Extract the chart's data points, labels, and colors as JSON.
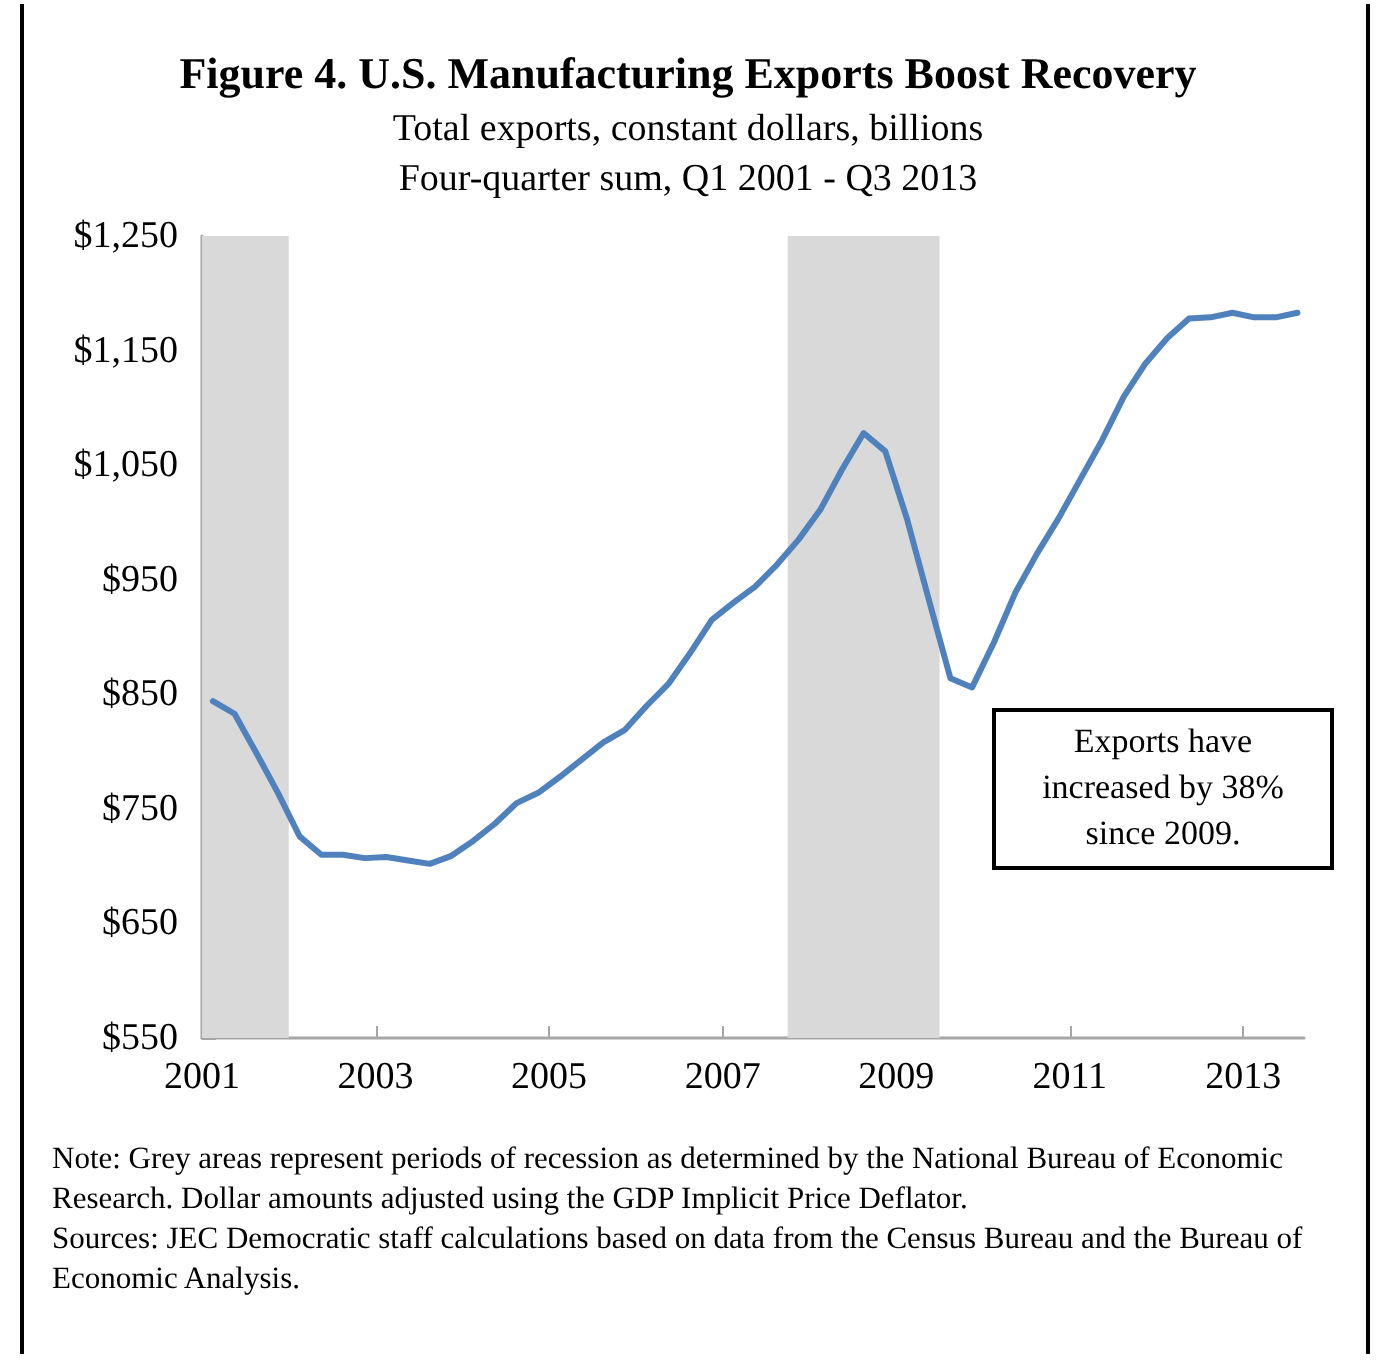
{
  "chart_data": {
    "type": "line",
    "title": "Figure 4. U.S. Manufacturing Exports Boost Recovery",
    "subtitle": "Total exports, constant dollars, billions\nFour-quarter sum, Q1 2001 - Q3 2013",
    "x": [
      2001.125,
      2001.375,
      2001.625,
      2001.875,
      2002.125,
      2002.375,
      2002.625,
      2002.875,
      2003.125,
      2003.375,
      2003.625,
      2003.875,
      2004.125,
      2004.375,
      2004.625,
      2004.875,
      2005.125,
      2005.375,
      2005.625,
      2005.875,
      2006.125,
      2006.375,
      2006.625,
      2006.875,
      2007.125,
      2007.375,
      2007.625,
      2007.875,
      2008.125,
      2008.375,
      2008.625,
      2008.875,
      2009.125,
      2009.375,
      2009.625,
      2009.875,
      2010.125,
      2010.375,
      2010.625,
      2010.875,
      2011.125,
      2011.375,
      2011.625,
      2011.875,
      2012.125,
      2012.375,
      2012.625,
      2012.875,
      2013.125,
      2013.375,
      2013.625
    ],
    "series": [
      {
        "color": "#4f81bd",
        "values": [
          844,
          833,
          799,
          764,
          726,
          710,
          710,
          707,
          708,
          705,
          702,
          709,
          722,
          737,
          755,
          764,
          778,
          793,
          808,
          819,
          840,
          859,
          886,
          915,
          930,
          944,
          963,
          985,
          1011,
          1046,
          1078,
          1062,
          1003,
          933,
          864,
          856,
          895,
          939,
          973,
          1004,
          1038,
          1072,
          1110,
          1139,
          1161,
          1178,
          1179,
          1183,
          1179,
          1179,
          1183
        ]
      }
    ],
    "xlim": [
      2001,
      2013.7
    ],
    "xticks": [
      2001,
      2003,
      2005,
      2007,
      2009,
      2011,
      2013
    ],
    "ylim": [
      550,
      1250
    ],
    "yticks": [
      {
        "value": 550,
        "label": "$550"
      },
      {
        "value": 650,
        "label": "$650"
      },
      {
        "value": 750,
        "label": "$750"
      },
      {
        "value": 850,
        "label": "$850"
      },
      {
        "value": 950,
        "label": "$950"
      },
      {
        "value": 1050,
        "label": "$1,050"
      },
      {
        "value": 1150,
        "label": "$1,150"
      },
      {
        "value": 1250,
        "label": "$1,250"
      }
    ],
    "bands": [
      {
        "axis": "x",
        "from": 2001,
        "to": 2002,
        "color": "#d9d9d9"
      },
      {
        "axis": "x",
        "from": 2007.75,
        "to": 2009.5,
        "color": "#d9d9d9"
      }
    ],
    "annotations": [
      "Exports have increased by 38% since 2009.",
      "Note: Grey areas represent periods of recession as determined by the National Bureau of Economic Research. Dollar amounts adjusted using the GDP Implicit Price Deflator.",
      "Sources: JEC Democratic staff calculations based on data from the Census Bureau and the Bureau of Economic Analysis."
    ],
    "grid": false,
    "marker": "none",
    "line_style": "solid"
  }
}
